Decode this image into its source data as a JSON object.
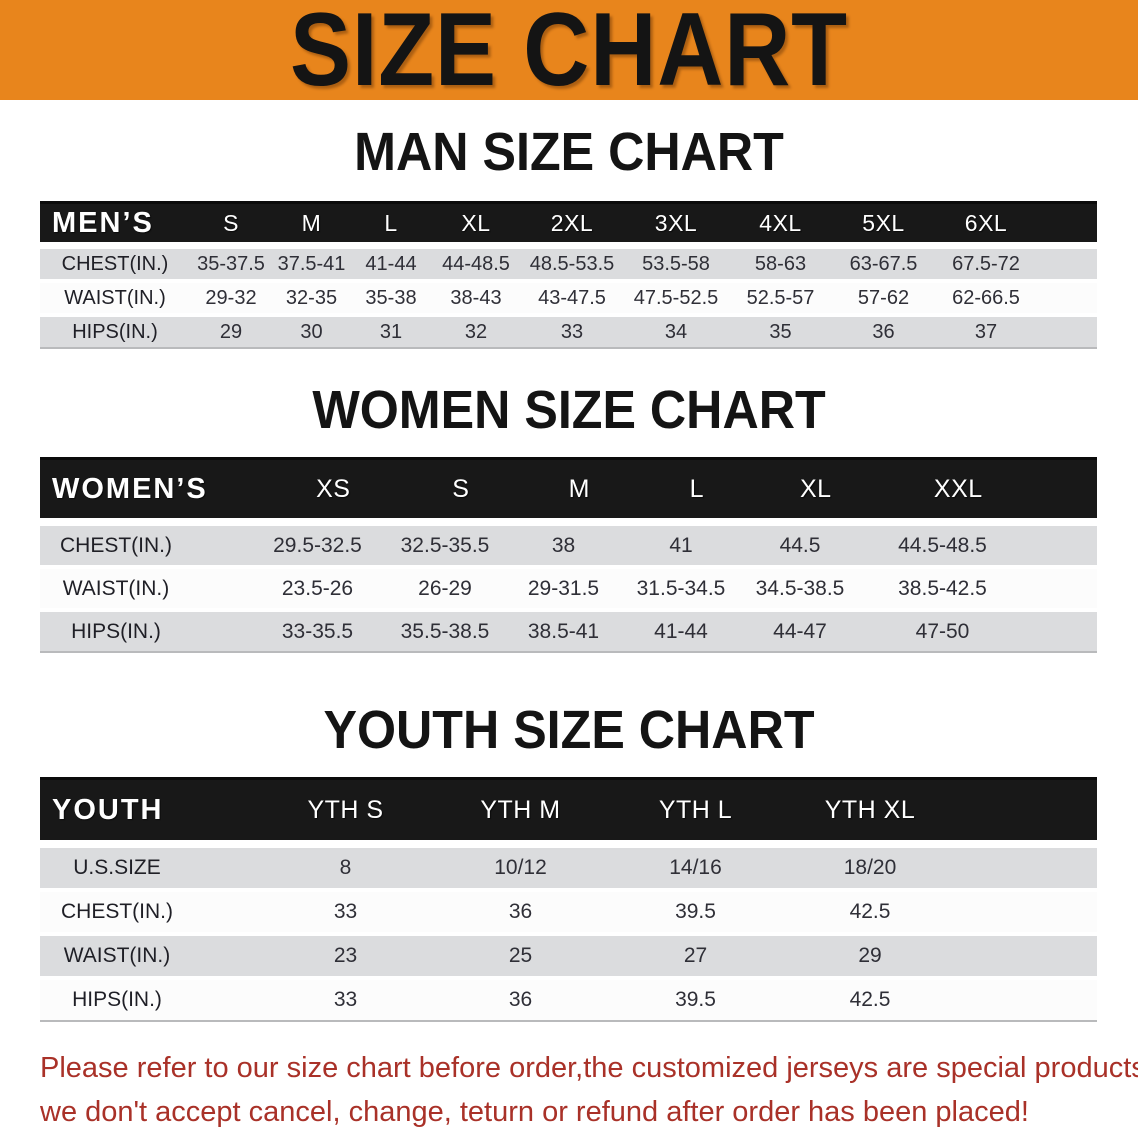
{
  "banner": {
    "title": "SIZE CHART"
  },
  "sections": [
    {
      "heading": "MAN SIZE CHART",
      "table": {
        "header": [
          "MEN’S",
          "S",
          "M",
          "L",
          "XL",
          "2XL",
          "3XL",
          "4XL",
          "5XL",
          "6XL"
        ],
        "rows": [
          {
            "label": "CHEST(IN.)",
            "values": [
              "35-37.5",
              "37.5-41",
              "41-44",
              "44-48.5",
              "48.5-53.5",
              "53.5-58",
              "58-63",
              "63-67.5",
              "67.5-72"
            ]
          },
          {
            "label": "WAIST(IN.)",
            "values": [
              "29-32",
              "32-35",
              "35-38",
              "38-43",
              "43-47.5",
              "47.5-52.5",
              "52.5-57",
              "57-62",
              "62-66.5"
            ]
          },
          {
            "label": "HIPS(IN.)",
            "values": [
              "29",
              "30",
              "31",
              "32",
              "33",
              "34",
              "35",
              "36",
              "37"
            ]
          }
        ]
      }
    },
    {
      "heading": "WOMEN SIZE CHART",
      "table": {
        "header": [
          "WOMEN’S",
          "XS",
          "S",
          "M",
          "L",
          "XL",
          "XXL"
        ],
        "rows": [
          {
            "label": "CHEST(IN.)",
            "values": [
              "29.5-32.5",
              "32.5-35.5",
              "38",
              "41",
              "44.5",
              "44.5-48.5"
            ]
          },
          {
            "label": "WAIST(IN.)",
            "values": [
              "23.5-26",
              "26-29",
              "29-31.5",
              "31.5-34.5",
              "34.5-38.5",
              "38.5-42.5"
            ]
          },
          {
            "label": "HIPS(IN.)",
            "values": [
              "33-35.5",
              "35.5-38.5",
              "38.5-41",
              "41-44",
              "44-47",
              "47-50"
            ]
          }
        ]
      }
    },
    {
      "heading": "YOUTH SIZE CHART",
      "table": {
        "header": [
          "YOUTH",
          "YTH S",
          "YTH M",
          "YTH L",
          "YTH XL"
        ],
        "rows": [
          {
            "label": "U.S.SIZE",
            "values": [
              "8",
              "10/12",
              "14/16",
              "18/20"
            ]
          },
          {
            "label": "CHEST(IN.)",
            "values": [
              "33",
              "36",
              "39.5",
              "42.5"
            ]
          },
          {
            "label": "WAIST(IN.)",
            "values": [
              "23",
              "25",
              "27",
              "29"
            ]
          },
          {
            "label": "HIPS(IN.)",
            "values": [
              "33",
              "36",
              "39.5",
              "42.5"
            ]
          }
        ]
      }
    }
  ],
  "footer": {
    "line1": "Please refer to our size chart before order,the customized jerseys are special products,",
    "line2": "we don't accept cancel, change, teturn or refund after order has been placed!"
  },
  "colors": {
    "banner_orange": "#E8851C",
    "header_bar_black": "#181818",
    "row_gray": "#DBDCDE",
    "notice_red": "#A93128"
  }
}
